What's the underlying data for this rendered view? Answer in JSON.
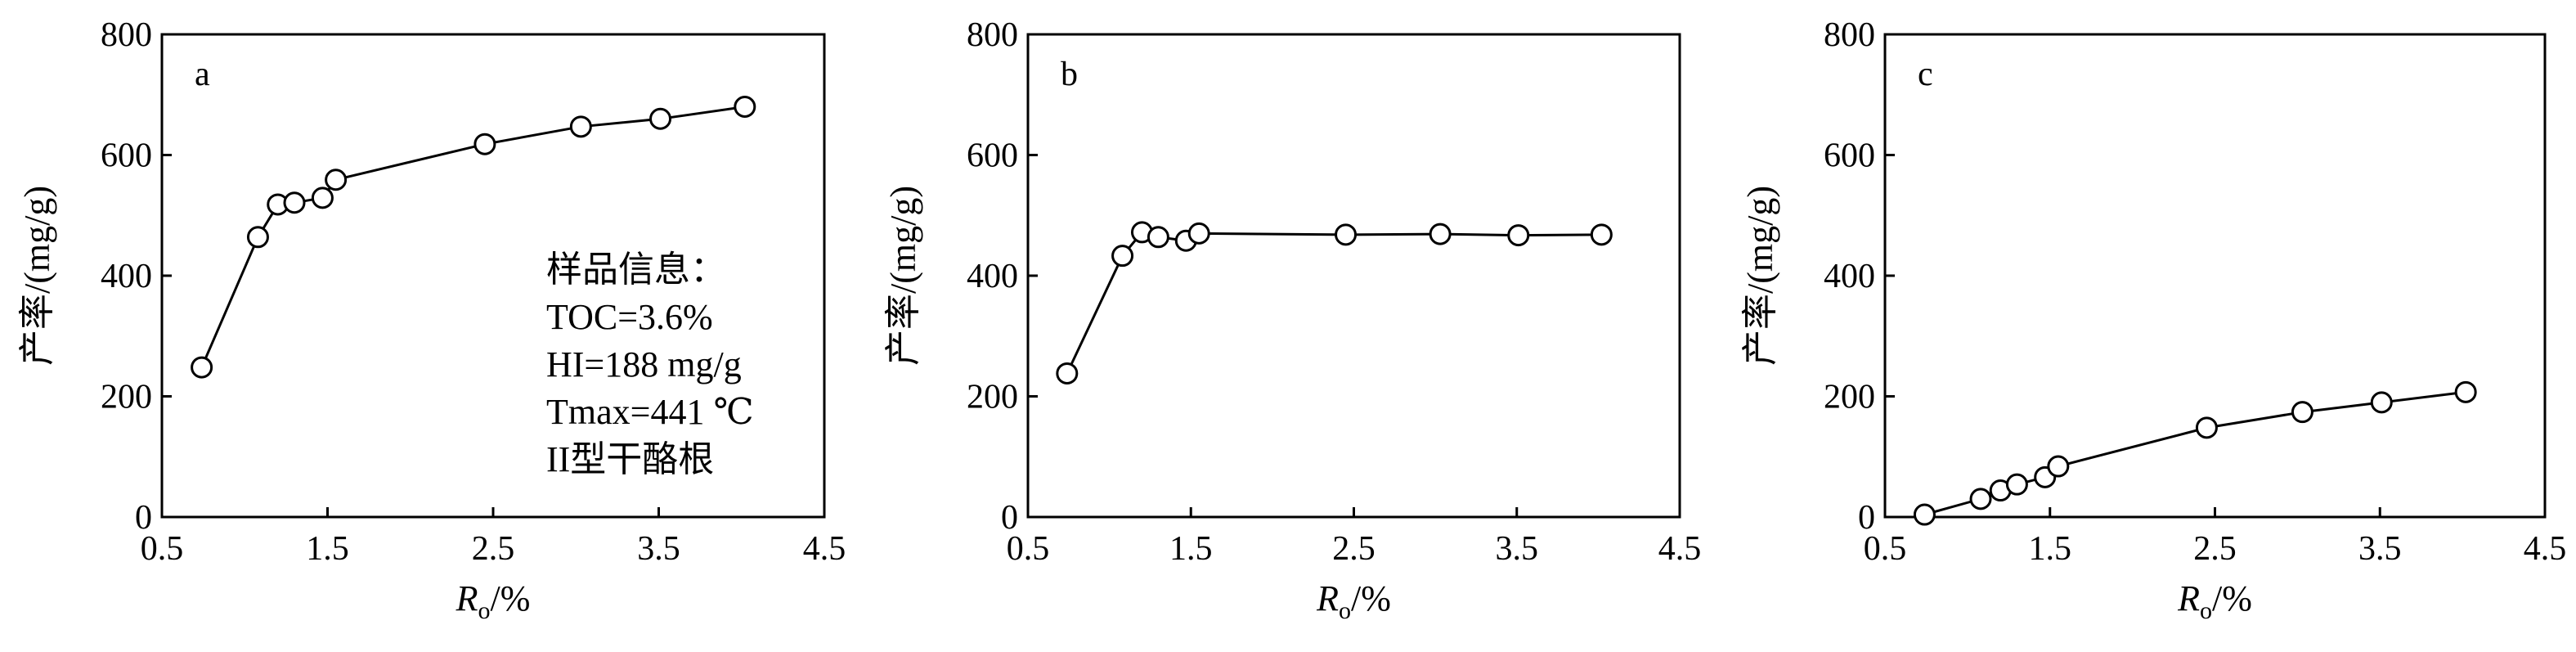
{
  "chart_data": [
    {
      "type": "scatter",
      "panel_label": "a",
      "x": [
        0.74,
        1.08,
        1.2,
        1.3,
        1.47,
        1.55,
        2.45,
        3.03,
        3.51,
        4.02
      ],
      "y": [
        248,
        464,
        518,
        521,
        529,
        559,
        618,
        647,
        660,
        680
      ],
      "xlabel": "Ro/%",
      "ylabel": "产率/(mg/g)",
      "xlim": [
        0.5,
        4.5
      ],
      "ylim": [
        0,
        800
      ],
      "xticks": [
        "0.5",
        "1.5",
        "2.5",
        "3.5",
        "4.5"
      ],
      "yticks": [
        "0",
        "200",
        "400",
        "600",
        "800"
      ],
      "grid": false,
      "annotations": [
        "样品信息：",
        "TOC=3.6%",
        "HI=188 mg/g",
        "Tmax=441 ℃",
        "II型干酪根"
      ]
    },
    {
      "type": "scatter",
      "panel_label": "b",
      "x": [
        0.74,
        1.08,
        1.2,
        1.3,
        1.47,
        1.55,
        2.45,
        3.03,
        3.51,
        4.02
      ],
      "y": [
        238,
        433,
        472,
        464,
        458,
        470,
        468,
        469,
        467,
        468
      ],
      "xlabel": "Ro/%",
      "ylabel": "产率/(mg/g)",
      "xlim": [
        0.5,
        4.5
      ],
      "ylim": [
        0,
        800
      ],
      "xticks": [
        "0.5",
        "1.5",
        "2.5",
        "3.5",
        "4.5"
      ],
      "yticks": [
        "0",
        "200",
        "400",
        "600",
        "800"
      ],
      "grid": false
    },
    {
      "type": "scatter",
      "panel_label": "c",
      "x": [
        0.74,
        1.08,
        1.2,
        1.3,
        1.47,
        1.55,
        2.45,
        3.03,
        3.51,
        4.02
      ],
      "y": [
        4,
        30,
        44,
        54,
        66,
        84,
        148,
        174,
        190,
        207
      ],
      "xlabel": "Ro/%",
      "ylabel": "产率/(mg/g)",
      "xlim": [
        0.5,
        4.5
      ],
      "ylim": [
        0,
        800
      ],
      "xticks": [
        "0.5",
        "1.5",
        "2.5",
        "3.5",
        "4.5"
      ],
      "yticks": [
        "0",
        "200",
        "400",
        "600",
        "800"
      ],
      "grid": false
    }
  ]
}
